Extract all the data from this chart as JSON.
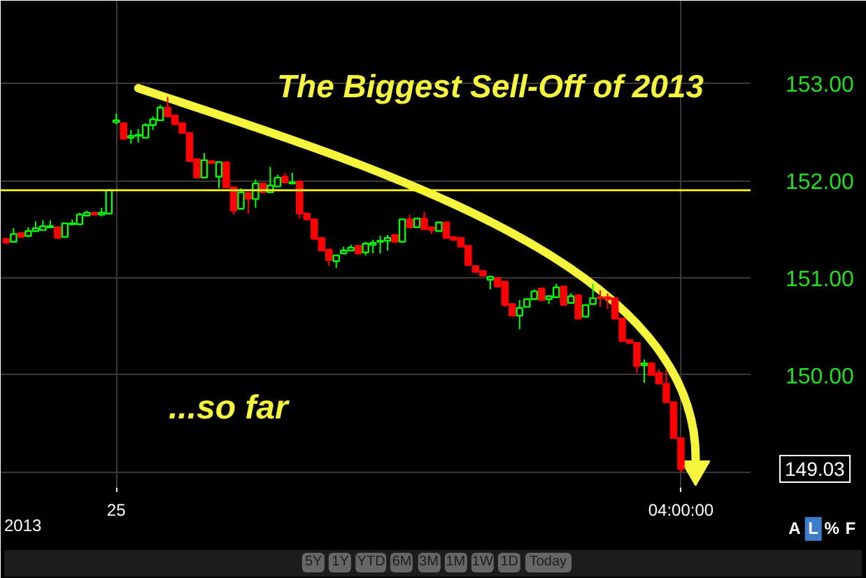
{
  "chart_data": {
    "type": "candlestick",
    "title": "The Biggest Sell-Off of 2013",
    "categories": [
      null,
      null,
      null,
      null,
      null,
      null,
      null,
      null,
      null,
      null,
      null,
      null,
      null,
      null,
      null,
      "25",
      null,
      null,
      null,
      null,
      null,
      null,
      null,
      null,
      null,
      null,
      null,
      null,
      null,
      null,
      null,
      null,
      null,
      null,
      null,
      null,
      null,
      null,
      null,
      null,
      null,
      null,
      null,
      null,
      null,
      null,
      null,
      null,
      null,
      null,
      null,
      null,
      null,
      null,
      null,
      null,
      null,
      null,
      null,
      null,
      null,
      null,
      null,
      null,
      null,
      null,
      null,
      null,
      null,
      null,
      null,
      null,
      null,
      null,
      null,
      null,
      null,
      null,
      null,
      null,
      null,
      null,
      null,
      null,
      null,
      null,
      null,
      null,
      null,
      null,
      null,
      null,
      "04:00:00"
    ],
    "ohlc": [
      [
        151.4,
        151.4,
        151.35,
        151.36
      ],
      [
        151.37,
        151.51,
        151.37,
        151.45
      ],
      [
        151.46,
        151.46,
        151.42,
        151.42
      ],
      [
        151.43,
        151.52,
        151.43,
        151.48
      ],
      [
        151.48,
        151.58,
        151.48,
        151.51
      ],
      [
        151.49,
        151.59,
        151.49,
        151.53
      ],
      [
        151.52,
        151.59,
        151.52,
        151.53
      ],
      [
        151.52,
        151.52,
        151.41,
        151.41
      ],
      [
        151.42,
        151.56,
        151.42,
        151.56
      ],
      [
        151.55,
        151.6,
        151.55,
        151.56
      ],
      [
        151.55,
        151.67,
        151.55,
        151.65
      ],
      [
        151.64,
        151.69,
        151.63,
        151.67
      ],
      [
        151.67,
        151.68,
        151.64,
        151.65
      ],
      [
        151.65,
        151.72,
        151.63,
        151.67
      ],
      [
        151.66,
        151.91,
        151.66,
        151.9
      ],
      [
        152.6,
        152.69,
        152.58,
        152.62
      ],
      [
        152.59,
        152.59,
        152.43,
        152.43
      ],
      [
        152.44,
        152.52,
        152.38,
        152.46
      ],
      [
        152.46,
        152.53,
        152.39,
        152.47
      ],
      [
        152.44,
        152.59,
        152.44,
        152.57
      ],
      [
        152.57,
        152.66,
        152.52,
        152.63
      ],
      [
        152.62,
        152.78,
        152.62,
        152.75
      ],
      [
        152.75,
        152.86,
        152.66,
        152.66
      ],
      [
        152.67,
        152.67,
        152.58,
        152.58
      ],
      [
        152.59,
        152.59,
        152.49,
        152.49
      ],
      [
        152.49,
        152.49,
        152.2,
        152.2
      ],
      [
        152.22,
        152.22,
        152.03,
        152.03
      ],
      [
        152.03,
        152.28,
        152.03,
        152.21
      ],
      [
        152.2,
        152.2,
        152.18,
        152.18
      ],
      [
        152.04,
        152.19,
        151.92,
        152.19
      ],
      [
        152.19,
        152.19,
        151.93,
        151.93
      ],
      [
        151.93,
        151.93,
        151.65,
        151.69
      ],
      [
        151.71,
        151.92,
        151.71,
        151.88
      ],
      [
        151.87,
        151.88,
        151.66,
        151.81
      ],
      [
        151.81,
        152.01,
        151.72,
        151.97
      ],
      [
        151.97,
        151.97,
        151.88,
        151.88
      ],
      [
        151.88,
        152.14,
        151.88,
        151.95
      ],
      [
        151.94,
        152.06,
        151.94,
        152.03
      ],
      [
        152.04,
        152.08,
        151.98,
        151.98
      ],
      [
        151.97,
        152.08,
        151.96,
        151.98
      ],
      [
        151.99,
        151.99,
        151.61,
        151.66
      ],
      [
        151.66,
        151.66,
        151.6,
        151.6
      ],
      [
        151.6,
        151.6,
        151.4,
        151.4
      ],
      [
        151.41,
        151.41,
        151.28,
        151.28
      ],
      [
        151.29,
        151.29,
        151.12,
        151.18
      ],
      [
        151.17,
        151.23,
        151.1,
        151.23
      ],
      [
        151.25,
        151.32,
        151.25,
        151.28
      ],
      [
        151.28,
        151.34,
        151.28,
        151.31
      ],
      [
        151.33,
        151.33,
        151.25,
        151.25
      ],
      [
        151.26,
        151.37,
        151.23,
        151.35
      ],
      [
        151.34,
        151.39,
        151.25,
        151.36
      ],
      [
        151.37,
        151.43,
        151.25,
        151.38
      ],
      [
        151.38,
        151.44,
        151.28,
        151.41
      ],
      [
        151.44,
        151.44,
        151.37,
        151.37
      ],
      [
        151.37,
        151.6,
        151.37,
        151.6
      ],
      [
        151.6,
        151.65,
        151.52,
        151.52
      ],
      [
        151.52,
        151.61,
        151.52,
        151.61
      ],
      [
        151.61,
        151.68,
        151.5,
        151.5
      ],
      [
        151.52,
        151.52,
        151.45,
        151.49
      ],
      [
        151.48,
        151.57,
        151.48,
        151.57
      ],
      [
        151.57,
        151.57,
        151.41,
        151.41
      ],
      [
        151.42,
        151.42,
        151.39,
        151.39
      ],
      [
        151.41,
        151.41,
        151.32,
        151.32
      ],
      [
        151.33,
        151.33,
        151.13,
        151.13
      ],
      [
        151.12,
        151.12,
        151.06,
        151.06
      ],
      [
        151.07,
        151.07,
        151.02,
        151.02
      ],
      [
        150.98,
        151.02,
        150.88,
        151.01
      ],
      [
        151.0,
        151.0,
        150.91,
        150.91
      ],
      [
        150.96,
        150.96,
        150.7,
        150.72
      ],
      [
        150.73,
        150.73,
        150.61,
        150.61
      ],
      [
        150.61,
        150.77,
        150.47,
        150.69
      ],
      [
        150.7,
        150.78,
        150.7,
        150.78
      ],
      [
        150.78,
        150.88,
        150.78,
        150.86
      ],
      [
        150.89,
        150.89,
        150.77,
        150.77
      ],
      [
        150.78,
        150.81,
        150.73,
        150.81
      ],
      [
        150.8,
        150.94,
        150.8,
        150.9
      ],
      [
        150.91,
        150.91,
        150.72,
        150.72
      ],
      [
        150.74,
        150.84,
        150.74,
        150.81
      ],
      [
        150.82,
        150.82,
        150.58,
        150.58
      ],
      [
        150.6,
        150.72,
        150.6,
        150.72
      ],
      [
        150.73,
        150.94,
        150.73,
        150.79
      ],
      [
        150.8,
        150.87,
        150.7,
        150.79
      ],
      [
        150.8,
        150.84,
        150.68,
        150.78
      ],
      [
        150.79,
        150.79,
        150.58,
        150.58
      ],
      [
        150.58,
        150.58,
        150.35,
        150.35
      ],
      [
        150.36,
        150.36,
        150.33,
        150.33
      ],
      [
        150.33,
        150.33,
        150.02,
        150.09
      ],
      [
        150.1,
        150.16,
        149.92,
        150.12
      ],
      [
        150.12,
        150.12,
        150.0,
        150.0
      ],
      [
        150.02,
        150.06,
        149.91,
        149.91
      ],
      [
        149.91,
        150.05,
        149.72,
        149.72
      ],
      [
        149.72,
        149.72,
        149.35,
        149.35
      ],
      [
        149.35,
        149.35,
        149.0,
        149.03
      ]
    ],
    "colors": [
      "#ff0000",
      "#00ff00",
      "#ff0000",
      "#00ff00",
      "#00ff00",
      "#00ff00",
      "#00ff00",
      "#ff0000",
      "#00ff00",
      "#00ff00",
      "#00ff00",
      "#00ff00",
      "#ff0000",
      "#00ff00",
      "#00ff00",
      "#00ff00",
      "#ff0000",
      "#00ff00",
      "#00ff00",
      "#00ff00",
      "#00ff00",
      "#00ff00",
      "#ff0000",
      "#ff0000",
      "#ff0000",
      "#ff0000",
      "#ff0000",
      "#00ff00",
      "#ff0000",
      "#00ff00",
      "#ff0000",
      "#ff0000",
      "#00ff00",
      "#ff0000",
      "#00ff00",
      "#ff0000",
      "#00ff00",
      "#00ff00",
      "#ff0000",
      "#00ff00",
      "#ff0000",
      "#ff0000",
      "#ff0000",
      "#ff0000",
      "#ff0000",
      "#00ff00",
      "#00ff00",
      "#00ff00",
      "#ff0000",
      "#00ff00",
      "#00ff00",
      "#00ff00",
      "#00ff00",
      "#ff0000",
      "#00ff00",
      "#ff0000",
      "#00ff00",
      "#ff0000",
      "#ff0000",
      "#00ff00",
      "#ff0000",
      "#ff0000",
      "#ff0000",
      "#ff0000",
      "#ff0000",
      "#ff0000",
      "#00ff00",
      "#ff0000",
      "#ff0000",
      "#ff0000",
      "#00ff00",
      "#00ff00",
      "#00ff00",
      "#ff0000",
      "#00ff00",
      "#00ff00",
      "#ff0000",
      "#00ff00",
      "#ff0000",
      "#00ff00",
      "#00ff00",
      "#ff0000",
      "#ff0000",
      "#ff0000",
      "#ff0000",
      "#ff0000",
      "#ff0000",
      "#00ff00",
      "#ff0000",
      "#ff0000",
      "#ff0000",
      "#ff0000",
      "#ff0000"
    ],
    "ylim": [
      148.84,
      153.85
    ],
    "yticks": [
      {
        "value": 149,
        "label": null
      },
      {
        "value": 150,
        "label": "150.00"
      },
      {
        "value": 151,
        "label": "151.00"
      },
      {
        "value": 152,
        "label": "152.00"
      },
      {
        "value": 153,
        "label": "153.00"
      }
    ],
    "grid": true,
    "ref_lines": [
      {
        "axis": "y",
        "value": 151.9,
        "color": "#ffff00"
      }
    ],
    "annotations": [
      "...so far",
      "2013",
      "149.03",
      "5Y",
      "1Y",
      "YTD",
      "6M",
      "3M",
      "1M",
      "1W",
      "1D",
      "Today",
      "A",
      "L",
      "%",
      "F"
    ]
  }
}
